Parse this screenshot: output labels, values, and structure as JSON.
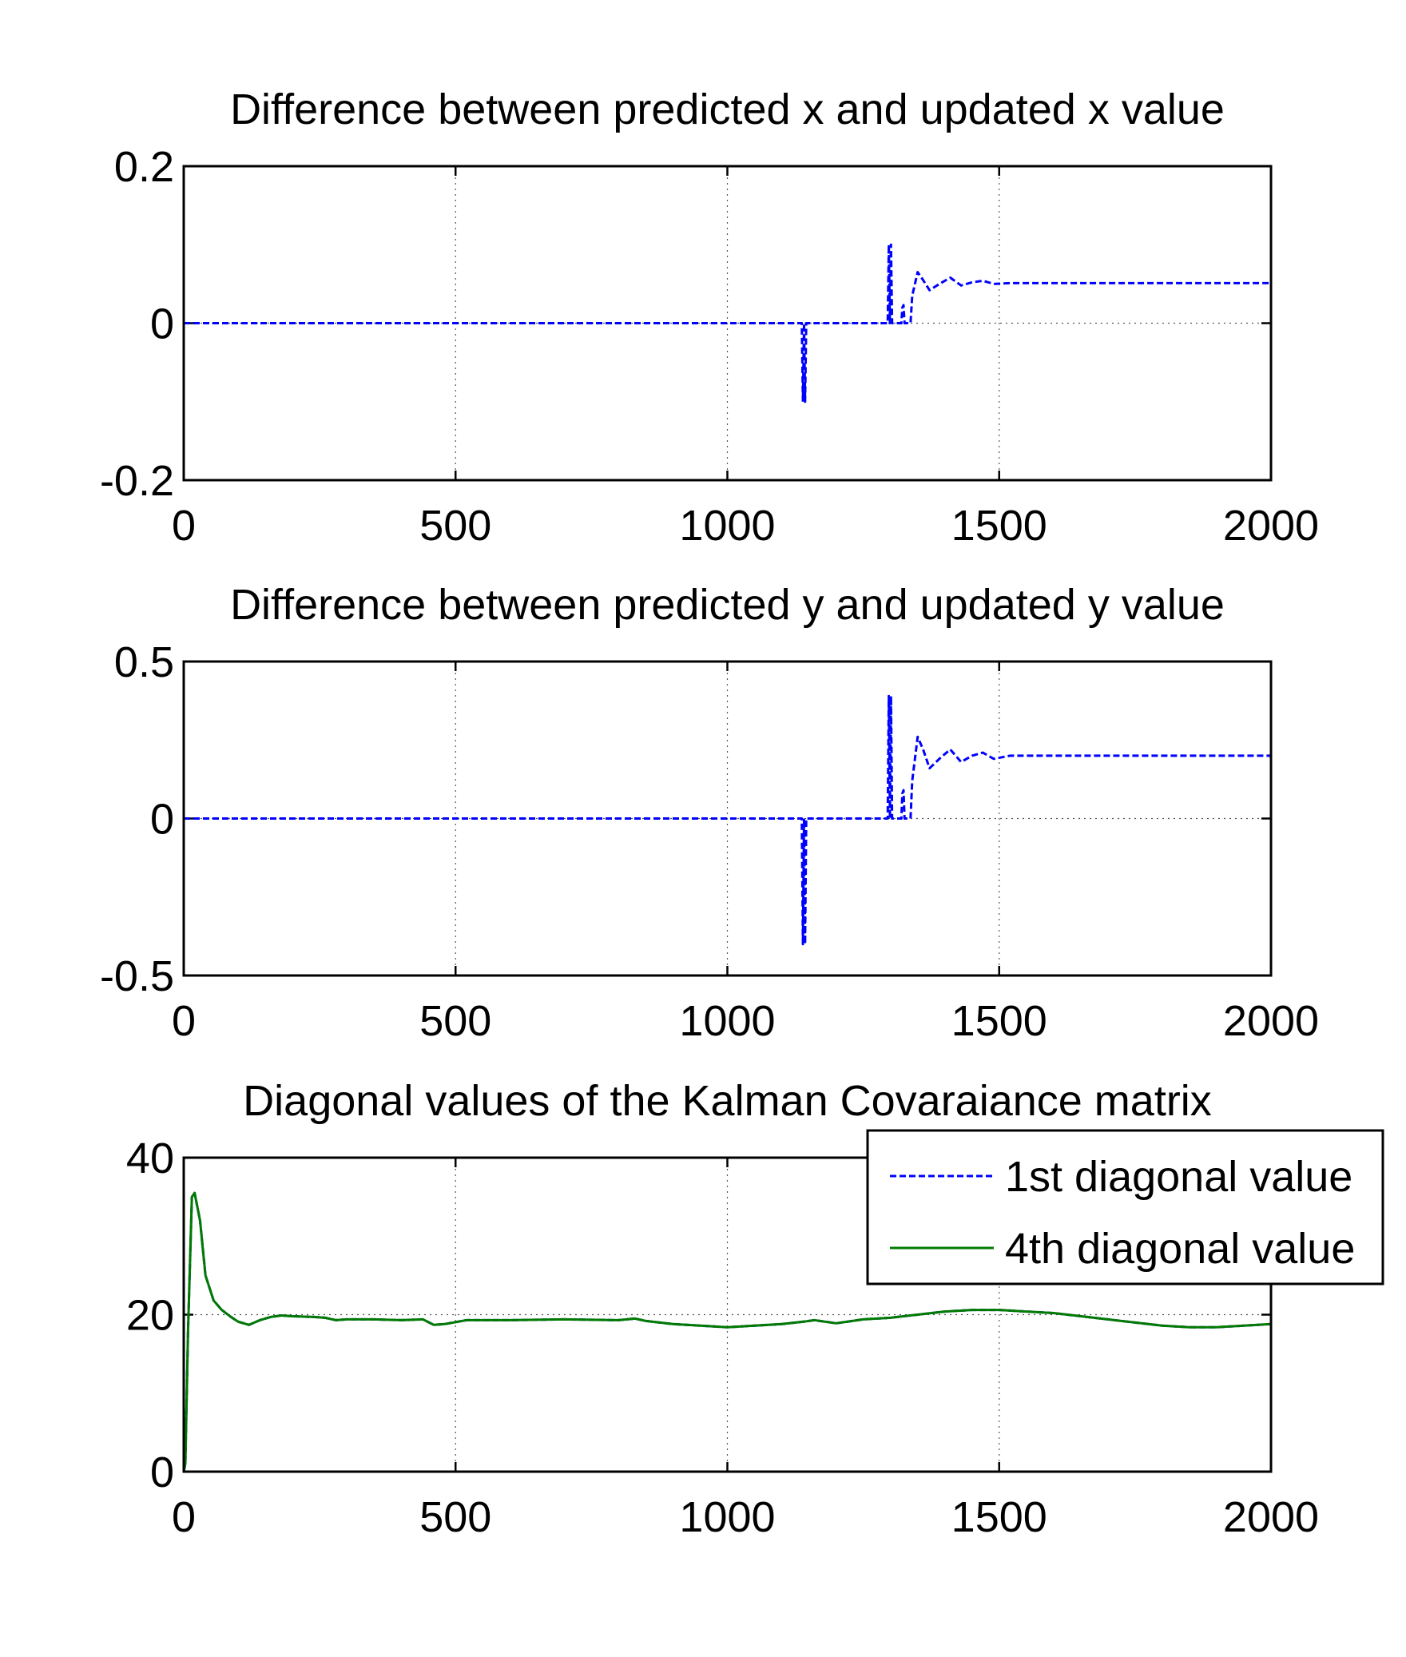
{
  "chart_data": [
    {
      "type": "line",
      "title": "Difference between predicted x and updated x value",
      "xlabel": "",
      "ylabel": "",
      "xlim": [
        0,
        2000
      ],
      "ylim": [
        -0.2,
        0.2
      ],
      "xticks": [
        "0",
        "500",
        "1000",
        "1500",
        "2000"
      ],
      "yticks": [
        "-0.2",
        "0",
        "0.2"
      ],
      "grid": true,
      "series": [
        {
          "color": "#0000ff",
          "style": "dashed",
          "x": [
            0,
            1137,
            1139,
            1141,
            1143,
            1145,
            1295,
            1297,
            1299,
            1301,
            1303,
            1305,
            1320,
            1322,
            1324,
            1326,
            1335,
            1337,
            1340,
            1350,
            1360,
            1372,
            1390,
            1410,
            1430,
            1450,
            1470,
            1490,
            1520,
            2000
          ],
          "y": [
            0,
            0,
            -0.1,
            0,
            -0.1,
            0,
            0,
            0.1,
            0,
            0.1,
            0,
            0,
            0,
            0.02,
            0.023,
            0,
            0,
            0,
            0.035,
            0.065,
            0.055,
            0.042,
            0.05,
            0.058,
            0.048,
            0.052,
            0.054,
            0.05,
            0.051,
            0.051
          ]
        }
      ]
    },
    {
      "type": "line",
      "title": "Difference between predicted y and updated y value",
      "xlabel": "",
      "ylabel": "",
      "xlim": [
        0,
        2000
      ],
      "ylim": [
        -0.5,
        0.5
      ],
      "xticks": [
        "0",
        "500",
        "1000",
        "1500",
        "2000"
      ],
      "yticks": [
        "-0.5",
        "0",
        "0.5"
      ],
      "grid": true,
      "series": [
        {
          "color": "#0000ff",
          "style": "dashed",
          "x": [
            0,
            1137,
            1139,
            1141,
            1143,
            1145,
            1295,
            1297,
            1299,
            1301,
            1303,
            1305,
            1320,
            1322,
            1324,
            1326,
            1335,
            1337,
            1340,
            1350,
            1360,
            1372,
            1390,
            1410,
            1430,
            1450,
            1470,
            1490,
            1520,
            2000
          ],
          "y": [
            0,
            0,
            -0.4,
            0,
            -0.4,
            0,
            0,
            0.39,
            0,
            0.39,
            0,
            0,
            0,
            0.08,
            0.09,
            0,
            0,
            0,
            0.12,
            0.26,
            0.22,
            0.16,
            0.19,
            0.22,
            0.18,
            0.2,
            0.21,
            0.19,
            0.2,
            0.2
          ]
        }
      ]
    },
    {
      "type": "line",
      "title": "Diagonal values of the Kalman Covaraiance matrix",
      "xlabel": "",
      "ylabel": "",
      "xlim": [
        0,
        2000
      ],
      "ylim": [
        0,
        40
      ],
      "xticks": [
        "0",
        "500",
        "1000",
        "1500",
        "2000"
      ],
      "yticks": [
        "0",
        "20",
        "40"
      ],
      "grid": true,
      "legend": "top-right",
      "series": [
        {
          "name": "1st diagonal value",
          "color": "#0000ff",
          "style": "dashed",
          "x": [
            0,
            3,
            8,
            15,
            20,
            30,
            40,
            55,
            70,
            85,
            100,
            120,
            140,
            160,
            180,
            200,
            240,
            260,
            280,
            300,
            350,
            400,
            440,
            460,
            480,
            520,
            600,
            700,
            800,
            830,
            850,
            900,
            1000,
            1050,
            1100,
            1140,
            1160,
            1180,
            1200,
            1250,
            1300,
            1350,
            1400,
            1450,
            1500,
            1550,
            1600,
            1700,
            1800,
            1850,
            1900,
            1950,
            2000
          ],
          "y": [
            0,
            1,
            18,
            35,
            35.5,
            32,
            25,
            21.8,
            20.6,
            19.8,
            19.1,
            18.7,
            19.3,
            19.7,
            19.9,
            19.8,
            19.7,
            19.6,
            19.3,
            19.4,
            19.4,
            19.3,
            19.4,
            18.7,
            18.8,
            19.3,
            19.3,
            19.4,
            19.3,
            19.5,
            19.2,
            18.8,
            18.4,
            18.6,
            18.8,
            19.1,
            19.3,
            19.1,
            18.9,
            19.4,
            19.6,
            20,
            20.4,
            20.6,
            20.6,
            20.4,
            20.2,
            19.4,
            18.6,
            18.4,
            18.4,
            18.6,
            18.8
          ]
        },
        {
          "name": "4th diagonal value",
          "color": "#007a00",
          "style": "solid",
          "x": [
            0,
            3,
            8,
            15,
            20,
            30,
            40,
            55,
            70,
            85,
            100,
            120,
            140,
            160,
            180,
            200,
            240,
            260,
            280,
            300,
            350,
            400,
            440,
            460,
            480,
            520,
            600,
            700,
            800,
            830,
            850,
            900,
            1000,
            1050,
            1100,
            1140,
            1160,
            1180,
            1200,
            1250,
            1300,
            1350,
            1400,
            1450,
            1500,
            1550,
            1600,
            1700,
            1800,
            1850,
            1900,
            1950,
            2000
          ],
          "y": [
            0,
            1,
            18,
            35,
            35.5,
            32,
            25,
            21.8,
            20.6,
            19.8,
            19.1,
            18.7,
            19.3,
            19.7,
            19.9,
            19.8,
            19.7,
            19.6,
            19.3,
            19.4,
            19.4,
            19.3,
            19.4,
            18.7,
            18.8,
            19.3,
            19.3,
            19.4,
            19.3,
            19.5,
            19.2,
            18.8,
            18.4,
            18.6,
            18.8,
            19.1,
            19.3,
            19.1,
            18.9,
            19.4,
            19.6,
            20,
            20.4,
            20.6,
            20.6,
            20.4,
            20.2,
            19.4,
            18.6,
            18.4,
            18.4,
            18.6,
            18.8
          ]
        }
      ]
    }
  ]
}
